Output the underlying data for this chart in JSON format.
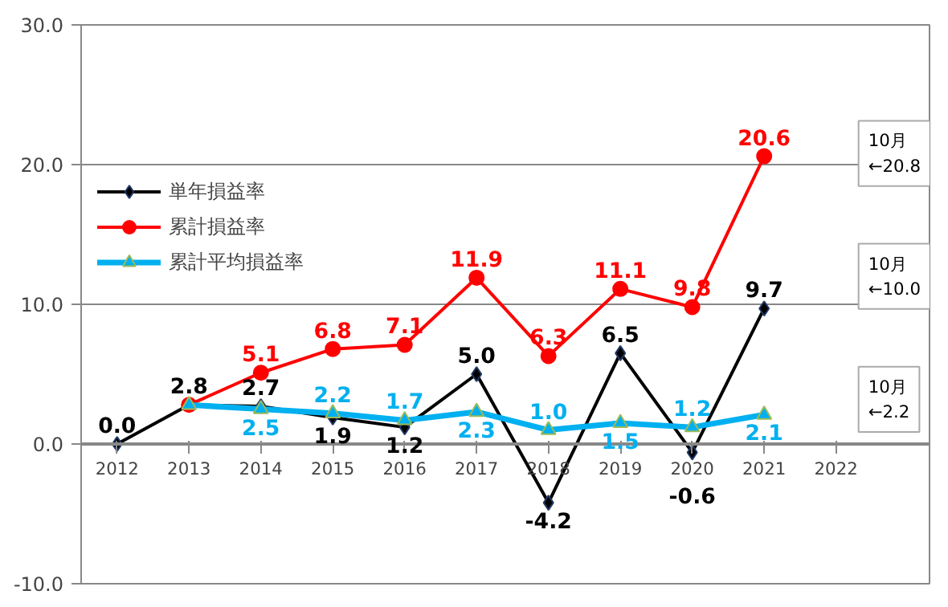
{
  "chart_data": {
    "type": "line",
    "categories": [
      "2012",
      "2013",
      "2014",
      "2015",
      "2016",
      "2017",
      "2018",
      "2019",
      "2020",
      "2021",
      "2022"
    ],
    "series": [
      {
        "name": "単年損益率",
        "color": "#000000",
        "marker": "diamond",
        "values": [
          0.0,
          2.8,
          2.7,
          1.9,
          1.2,
          5.0,
          -4.2,
          6.5,
          -0.6,
          9.7,
          null
        ],
        "value_labels": [
          "0.0",
          "2.8",
          "2.7",
          "1.9",
          "1.2",
          "5.0",
          "-4.2",
          "6.5",
          "-0.6",
          "9.7",
          null
        ]
      },
      {
        "name": "累計損益率",
        "color": "#ff0000",
        "marker": "circle",
        "values": [
          null,
          2.8,
          5.1,
          6.8,
          7.1,
          11.9,
          6.3,
          11.1,
          9.8,
          20.6,
          null
        ],
        "value_labels": [
          null,
          null,
          "5.1",
          "6.8",
          "7.1",
          "11.9",
          "6.3",
          "11.1",
          "9.8",
          "20.6",
          null
        ]
      },
      {
        "name": "累計平均損益率",
        "color": "#00b0f0",
        "marker": "triangle",
        "values": [
          null,
          2.8,
          2.5,
          2.2,
          1.7,
          2.3,
          1.0,
          1.5,
          1.2,
          2.1,
          null
        ],
        "value_labels": [
          null,
          null,
          "2.5",
          "2.2",
          "1.7",
          "2.3",
          "1.0",
          "1.5",
          "1.2",
          "2.1",
          null
        ]
      }
    ],
    "ylim": [
      -10,
      30
    ],
    "yticks": [
      {
        "value": -10,
        "label": "-10.0"
      },
      {
        "value": 0,
        "label": "0.0"
      },
      {
        "value": 10,
        "label": "10.0"
      },
      {
        "value": 20,
        "label": "20.0"
      },
      {
        "value": 30,
        "label": "30.0"
      }
    ],
    "grid": "y",
    "legend": "top left",
    "line_style": "solid",
    "annotations": [
      "10月\n←20.8",
      "10月\n←10.0",
      "10月\n←2.2"
    ]
  }
}
